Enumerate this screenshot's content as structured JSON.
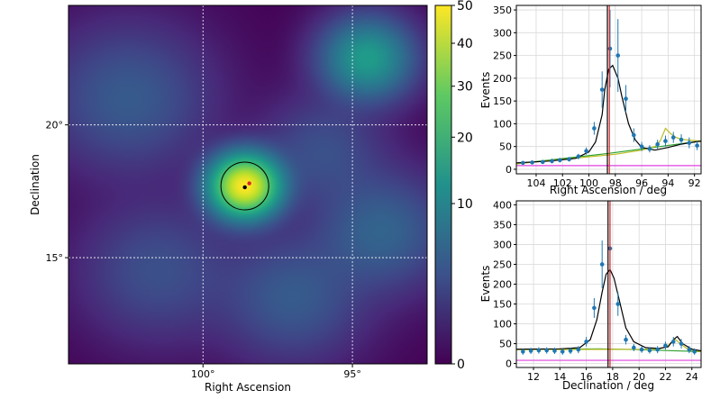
{
  "chart_data": [
    {
      "type": "heatmap",
      "xlabel": "Right Ascension",
      "ylabel": "Declination",
      "x_ticks": [
        {
          "value": 100,
          "label": "100°"
        },
        {
          "value": 95,
          "label": "95°"
        }
      ],
      "y_ticks": [
        {
          "value": 20,
          "label": "20°"
        },
        {
          "value": 15,
          "label": "15°"
        }
      ],
      "xlim": [
        104.5,
        92.5
      ],
      "ylim": [
        11,
        24.5
      ],
      "grid": true,
      "colormap": "viridis",
      "colorbar": {
        "ticks": [
          0,
          10,
          20,
          30,
          40,
          50
        ],
        "range": [
          0,
          50
        ]
      },
      "blobs": [
        {
          "ra": 98.6,
          "dec": 17.7,
          "value": 50,
          "sigma": 0.7
        },
        {
          "ra": 94.5,
          "dec": 22.5,
          "value": 15,
          "sigma": 0.9
        },
        {
          "ra": 102.5,
          "dec": 21.0,
          "value": 4,
          "sigma": 1.6
        },
        {
          "ra": 94.0,
          "dec": 16.0,
          "value": 5,
          "sigma": 1.3
        },
        {
          "ra": 97.0,
          "dec": 13.5,
          "value": 4,
          "sigma": 1.4
        },
        {
          "ra": 101.5,
          "dec": 14.5,
          "value": 3,
          "sigma": 1.5
        },
        {
          "ra": 96.0,
          "dec": 19.0,
          "value": 3,
          "sigma": 1.2
        }
      ],
      "source_circle": {
        "ra": 98.6,
        "dec": 17.7,
        "radius": 0.8
      },
      "markers": [
        {
          "ra": 98.6,
          "dec": 17.65,
          "color": "#000000"
        },
        {
          "ra": 98.45,
          "dec": 17.8,
          "color": "#d62728"
        }
      ]
    },
    {
      "type": "scatter",
      "xlabel": "Right Ascension / deg",
      "ylabel": "Events",
      "xlim": [
        105.5,
        91.5
      ],
      "ylim": [
        -10,
        360
      ],
      "x_ticks": [
        104,
        102,
        100,
        98,
        96,
        94,
        92
      ],
      "y_ticks": [
        0,
        50,
        100,
        150,
        200,
        250,
        300,
        350
      ],
      "grid": true,
      "points": {
        "x": [
          105,
          104.3,
          103.5,
          102.8,
          102.2,
          101.5,
          100.8,
          100.2,
          99.6,
          99,
          98.4,
          97.8,
          97.2,
          96.6,
          96,
          95.4,
          94.8,
          94.2,
          93.6,
          93,
          92.4,
          91.8
        ],
        "y": [
          14,
          15,
          16,
          18,
          20,
          22,
          28,
          40,
          90,
          175,
          265,
          250,
          155,
          75,
          50,
          45,
          55,
          62,
          70,
          65,
          58,
          52
        ],
        "yerr": [
          4,
          4,
          4,
          5,
          5,
          5,
          6,
          8,
          14,
          40,
          85,
          80,
          30,
          15,
          10,
          8,
          10,
          12,
          12,
          12,
          12,
          10
        ]
      },
      "fit_total_x": [
        105.5,
        103,
        101,
        100,
        99.5,
        99,
        98.8,
        98.5,
        98.2,
        97.8,
        97.5,
        97,
        96.5,
        96,
        95,
        94,
        93,
        92,
        91.5
      ],
      "fit_total_y": [
        14,
        18,
        24,
        38,
        60,
        120,
        175,
        220,
        228,
        200,
        160,
        100,
        65,
        48,
        42,
        48,
        55,
        60,
        62
      ],
      "background_x": [
        105.5,
        98.5,
        91.5
      ],
      "background_y": [
        12,
        35,
        62
      ],
      "second_source_x": [
        105.5,
        98,
        96,
        95,
        94.6,
        94.2,
        93.8,
        93.4,
        93,
        92,
        91.5
      ],
      "second_source_y": [
        12,
        33,
        42,
        50,
        62,
        90,
        78,
        70,
        66,
        63,
        62
      ],
      "constant_level": 8,
      "source_lines": [
        {
          "x": 98.6,
          "color": "#000000"
        },
        {
          "x": 98.45,
          "color": "#d62728"
        }
      ]
    },
    {
      "type": "scatter",
      "xlabel": "Declination / deg",
      "ylabel": "Events",
      "xlim": [
        10.7,
        24.7
      ],
      "ylim": [
        -10,
        410
      ],
      "x_ticks": [
        12,
        14,
        16,
        18,
        20,
        22,
        24
      ],
      "y_ticks": [
        0,
        50,
        100,
        150,
        200,
        250,
        300,
        350,
        400
      ],
      "grid": true,
      "points": {
        "x": [
          11.2,
          11.8,
          12.4,
          13,
          13.6,
          14.2,
          14.8,
          15.4,
          16,
          16.6,
          17.2,
          17.8,
          18.4,
          19,
          19.6,
          20.2,
          20.8,
          21.4,
          22,
          22.6,
          23.2,
          23.8,
          24.2
        ],
        "y": [
          30,
          32,
          33,
          33,
          32,
          30,
          32,
          35,
          55,
          140,
          250,
          290,
          150,
          60,
          40,
          35,
          33,
          35,
          45,
          55,
          50,
          35,
          30
        ],
        "yerr": [
          8,
          8,
          8,
          8,
          8,
          8,
          8,
          9,
          12,
          25,
          60,
          70,
          30,
          12,
          9,
          8,
          8,
          9,
          10,
          12,
          12,
          9,
          8
        ]
      },
      "fit_total_x": [
        10.7,
        14,
        15.5,
        16.3,
        16.8,
        17.2,
        17.5,
        17.8,
        18.1,
        18.5,
        19,
        19.6,
        20.5,
        21.5,
        22.2,
        22.6,
        22.9,
        23.3,
        24,
        24.7
      ],
      "fit_total_y": [
        36,
        37,
        40,
        60,
        110,
        180,
        225,
        237,
        215,
        160,
        90,
        55,
        40,
        38,
        42,
        60,
        68,
        50,
        36,
        32
      ],
      "background_x": [
        10.7,
        14,
        17,
        20,
        24.7
      ],
      "background_y": [
        35,
        36,
        37,
        35,
        30
      ],
      "second_source_x": [
        10.7,
        21.5,
        22.2,
        22.7,
        23.2,
        23.8,
        24.7
      ],
      "second_source_y": [
        35,
        36,
        45,
        62,
        48,
        34,
        30
      ],
      "constant_level": 8,
      "source_lines": [
        {
          "x": 17.65,
          "color": "#000000"
        },
        {
          "x": 17.8,
          "color": "#d62728"
        }
      ]
    }
  ]
}
